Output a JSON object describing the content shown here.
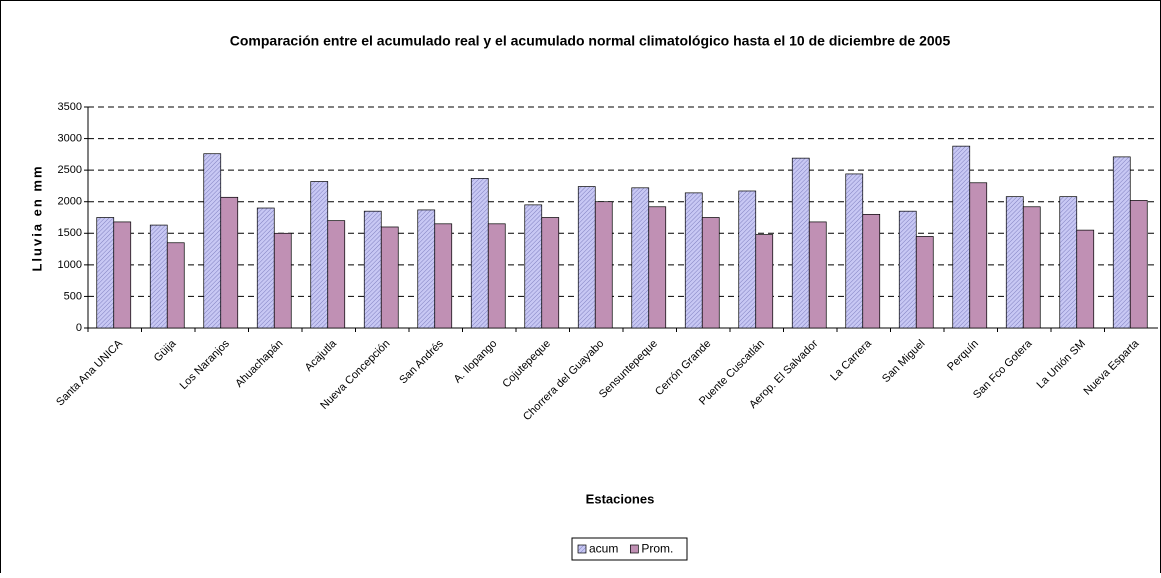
{
  "chart_data": {
    "type": "bar",
    "title": "Comparación entre el acumulado real y el acumulado normal climatológico hasta el 10 de diciembre de 2005",
    "x_label": "Estaciones",
    "y_label": "Lluvia en mm",
    "categories": [
      "Santa Ana UNICA",
      "Güija",
      "Los Naranjos",
      "Ahuachapán",
      "Acajutla",
      "Nueva Concepción",
      "San Andrés",
      "A. Ilopango",
      "Cojutepeque",
      "Chorrera del Guayabo",
      "Sensuntepeque",
      "Cerrón Grande",
      "Puente Cuscatlán",
      "Aerop. El Salvador",
      "La Carrera",
      "San Miguel",
      "Perquín",
      "San Fco Gotera",
      "La Unión SM",
      "Nueva Esparta"
    ],
    "series": [
      {
        "name": "acum",
        "color": "#c8c8f4",
        "values": [
          1750,
          1630,
          2760,
          1900,
          2320,
          1850,
          1870,
          2370,
          1950,
          2240,
          2220,
          2140,
          2170,
          2690,
          2440,
          1850,
          2880,
          2080,
          2080,
          2710
        ]
      },
      {
        "name": "Prom.",
        "color": "#c090b4",
        "values": [
          1680,
          1350,
          2070,
          1500,
          1700,
          1600,
          1650,
          1650,
          1750,
          2000,
          1920,
          1750,
          1480,
          1680,
          1800,
          1450,
          2300,
          1920,
          1550,
          2020
        ]
      }
    ],
    "ylim": [
      0,
      3500
    ],
    "yticks": [
      0,
      500,
      1000,
      1500,
      2000,
      2500,
      3000,
      3500
    ],
    "grid": true,
    "legend": "bottom"
  }
}
